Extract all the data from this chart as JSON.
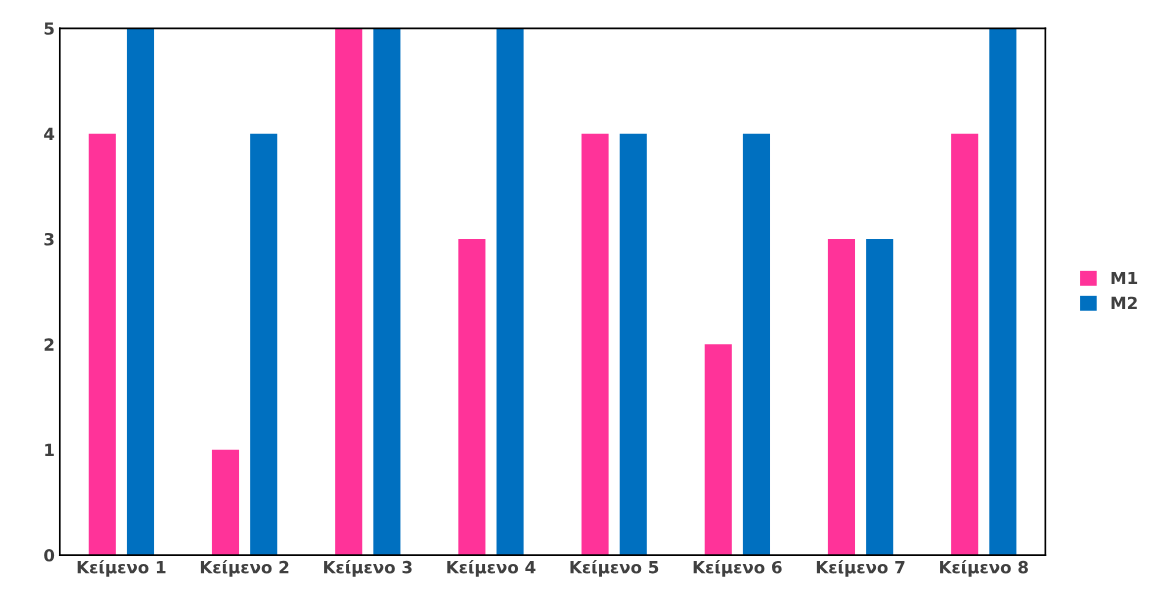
{
  "chart_data": {
    "type": "bar",
    "categories": [
      "Κείμενο 1",
      "Κείμενο 2",
      "Κείμενο 3",
      "Κείμενο 4",
      "Κείμενο 5",
      "Κείμενο 6",
      "Κείμενο 7",
      "Κείμενο 8"
    ],
    "series": [
      {
        "name": "M1",
        "color": "#ff3399",
        "values": [
          4,
          1,
          5,
          3,
          4,
          2,
          3,
          4
        ]
      },
      {
        "name": "M2",
        "color": "#0070c0",
        "values": [
          5,
          4,
          5,
          5,
          4,
          4,
          3,
          5
        ]
      }
    ],
    "ylim": [
      0,
      5
    ],
    "yticks": [
      0,
      1,
      2,
      3,
      4,
      5
    ],
    "grid": false,
    "legend": "right"
  }
}
